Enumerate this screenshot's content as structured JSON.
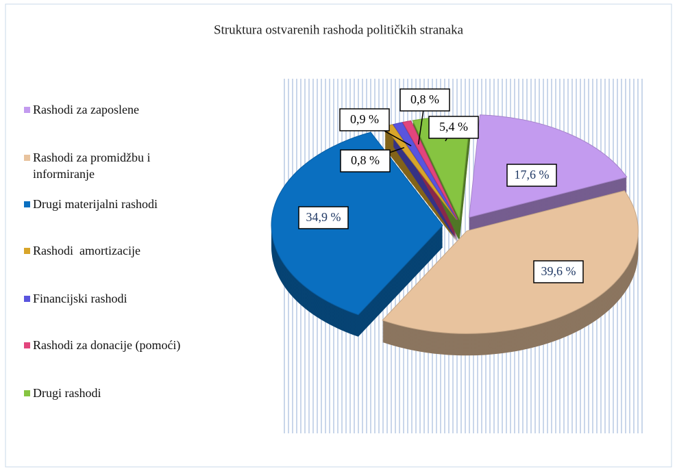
{
  "chart_data": {
    "type": "pie",
    "title": "Struktura ostvarenih rashoda političkih stranaka",
    "categories": [
      "Rashodi za zaposlene",
      "Rashodi za promidžbu i informiranje",
      "Drugi materijalni rashodi",
      "Rashodi  amortizacije",
      "Financijski rashodi",
      "Rashodi za donacije (pomoći)",
      "Drugi rashodi"
    ],
    "values": [
      17.6,
      39.6,
      34.9,
      0.8,
      0.9,
      0.8,
      5.4
    ],
    "value_labels": [
      "17,6 %",
      "39,6 %",
      "34,9 %",
      "0,8 %",
      "0,9 %",
      "0,8 %",
      "5,4 %"
    ],
    "colors": [
      "#c39bef",
      "#e8c39e",
      "#0a6fc0",
      "#d8a52a",
      "#5a55de",
      "#e2457d",
      "#86c441"
    ],
    "legend": "left"
  }
}
